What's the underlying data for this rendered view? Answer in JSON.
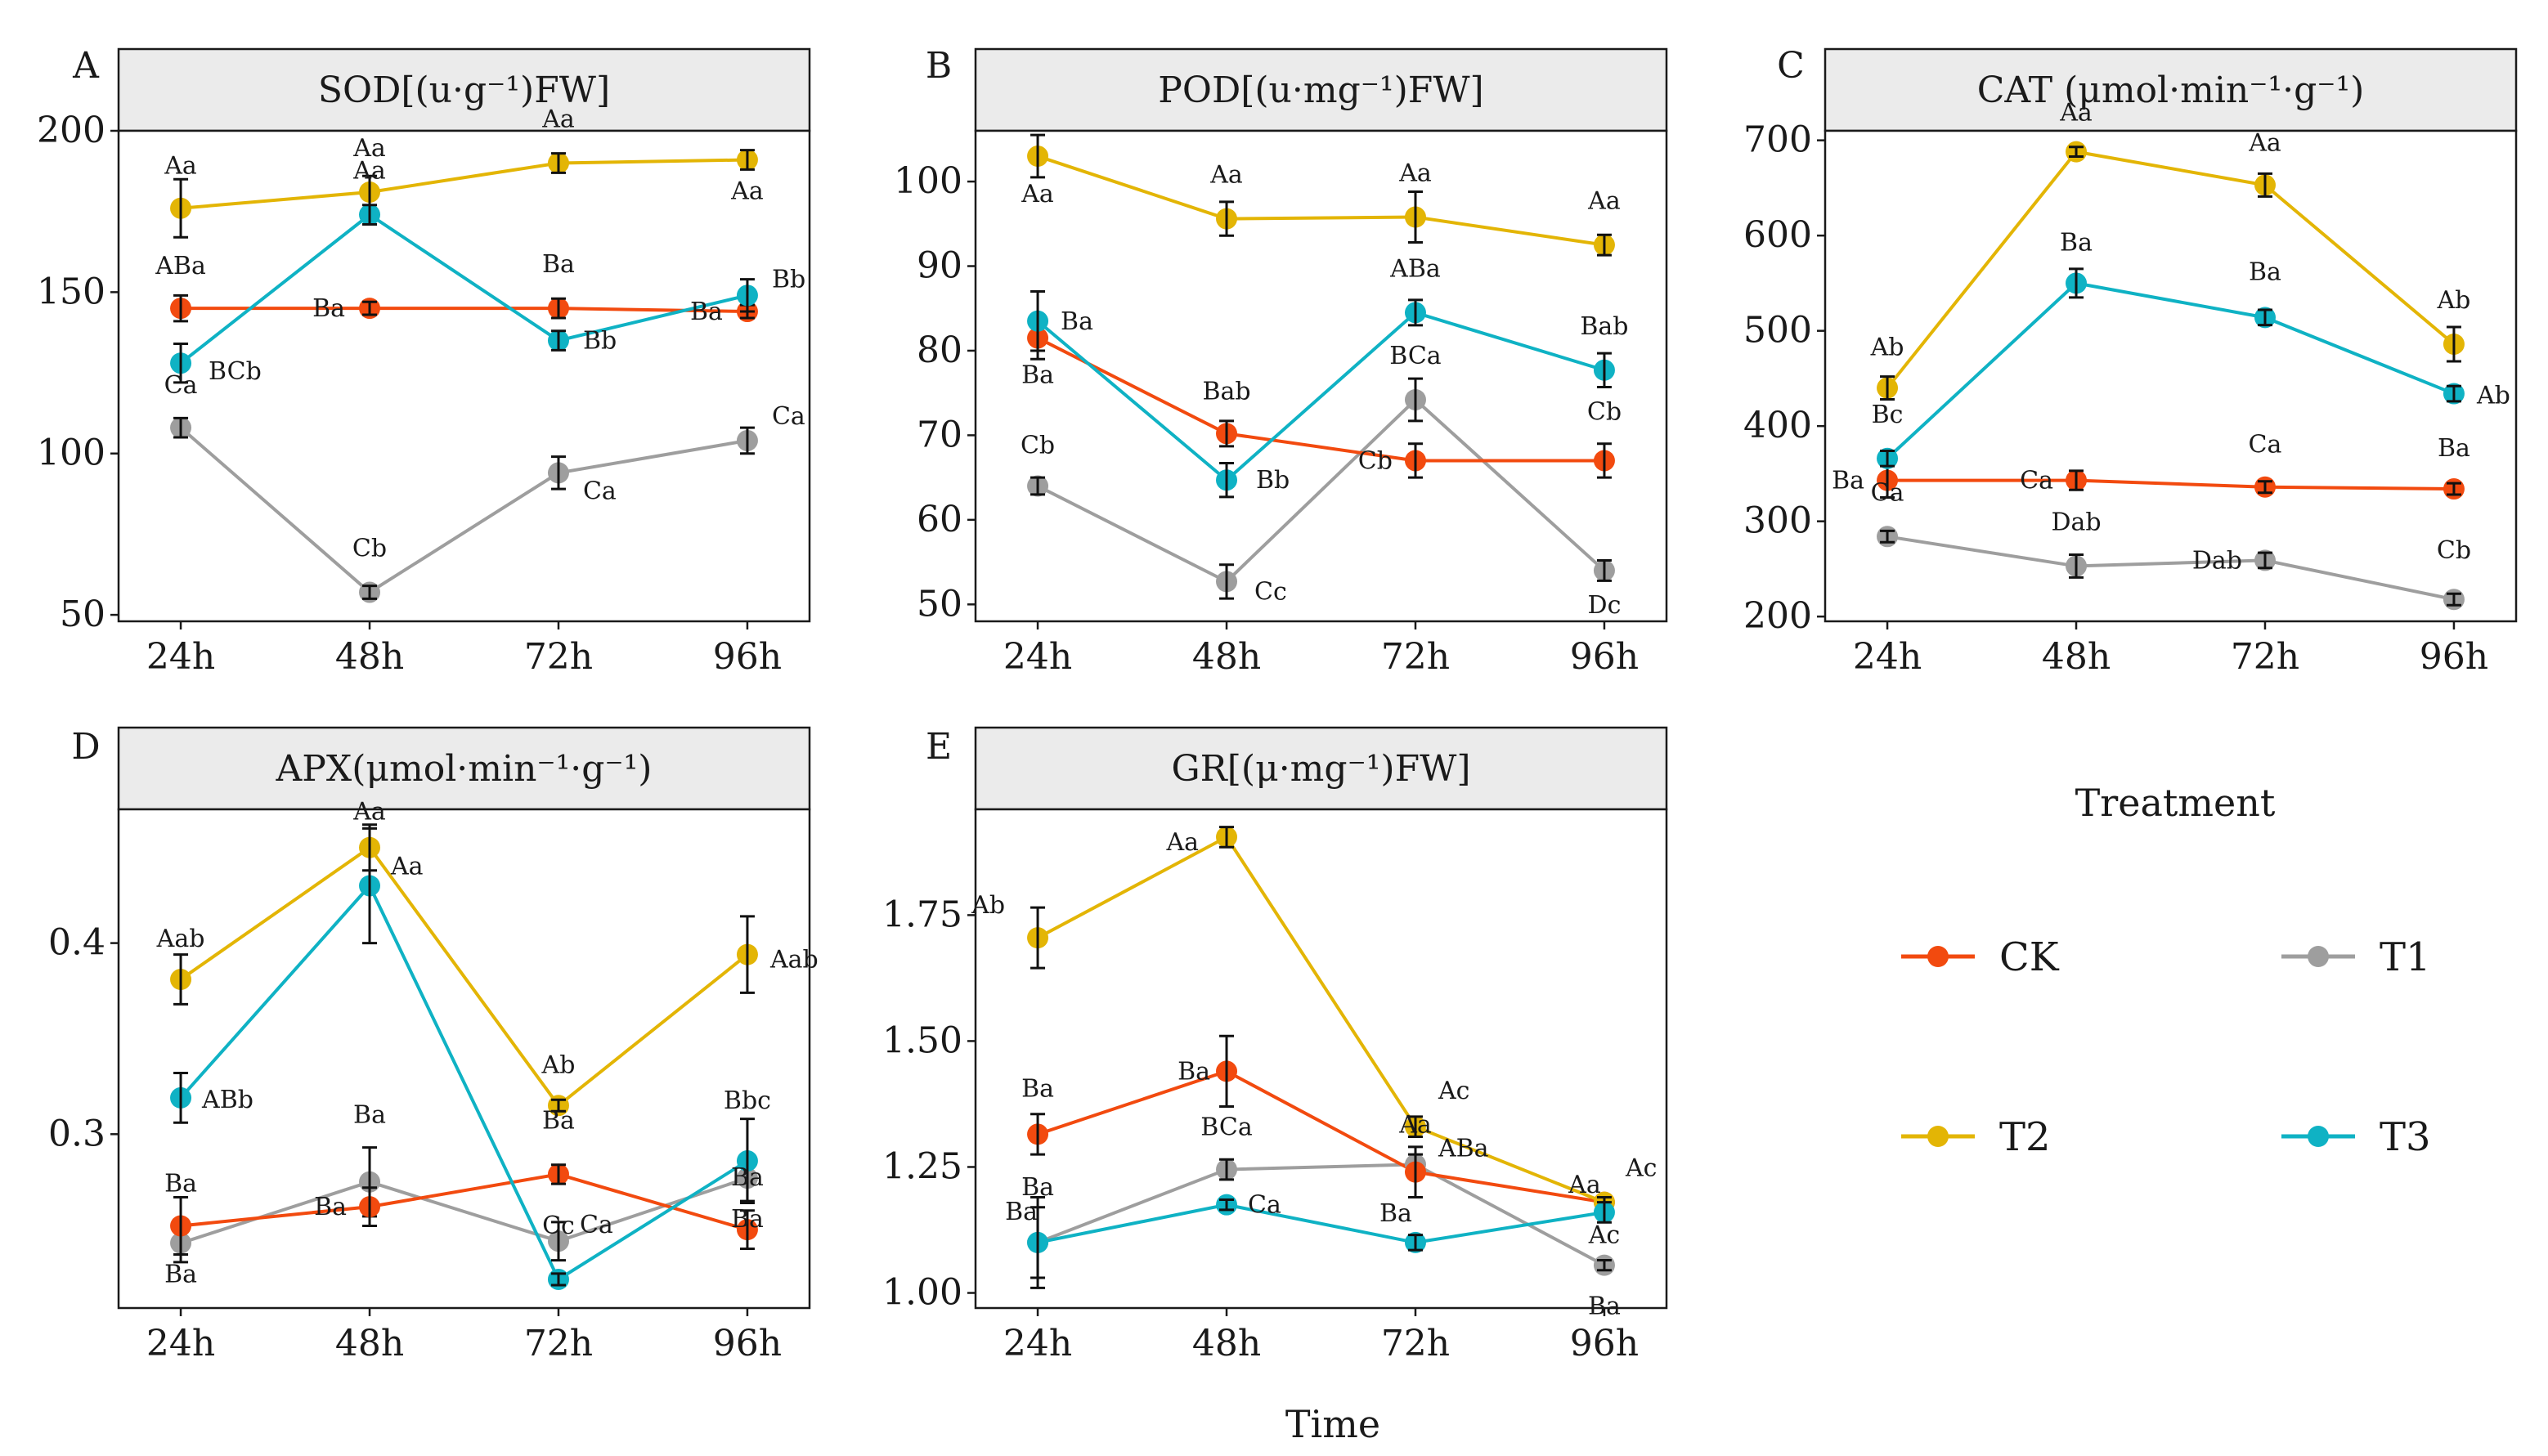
{
  "figure": {
    "x_axis_title": "Time",
    "legend_title": "Treatment",
    "legend_items": [
      {
        "name": "CK",
        "color": "#f24a0f"
      },
      {
        "name": "T1",
        "color": "#9e9e9e"
      },
      {
        "name": "T2",
        "color": "#e3b505"
      },
      {
        "name": "T3",
        "color": "#0fb2c4"
      }
    ]
  },
  "chart_data": [
    {
      "type": "line",
      "panel": "A",
      "title": "SOD[(u·g⁻¹)FW]",
      "xlabel": "Time",
      "ylabel": "",
      "categories": [
        "24h",
        "48h",
        "72h",
        "96h"
      ],
      "ylim": [
        48,
        200
      ],
      "yticks": [
        50,
        100,
        150,
        200
      ],
      "ytick_labels": [
        "50",
        "100",
        "150",
        "200"
      ],
      "series": [
        {
          "name": "CK",
          "color": "#f24a0f",
          "values": [
            145,
            145,
            145,
            144
          ],
          "errors": [
            4,
            2,
            3,
            2
          ],
          "labels": [
            "ABa",
            "Ba",
            "Ba",
            "Ba"
          ]
        },
        {
          "name": "T1",
          "color": "#9e9e9e",
          "values": [
            108,
            57,
            94,
            104
          ],
          "errors": [
            3,
            2,
            5,
            4
          ],
          "labels": [
            "Ca",
            "Cb",
            "Ca",
            "Ca"
          ]
        },
        {
          "name": "T2",
          "color": "#e3b505",
          "values": [
            176,
            181,
            190,
            191
          ],
          "errors": [
            9,
            5,
            3,
            3
          ],
          "labels": [
            "Aa",
            "Aa",
            "Aa",
            "Aa"
          ]
        },
        {
          "name": "T3",
          "color": "#0fb2c4",
          "values": [
            128,
            174,
            135,
            149
          ],
          "errors": [
            6,
            3,
            3,
            5
          ],
          "labels": [
            "BCb",
            "Aa",
            "Bb",
            "Bb"
          ]
        }
      ]
    },
    {
      "type": "line",
      "panel": "B",
      "title": "POD[(u·mg⁻¹)FW]",
      "xlabel": "Time",
      "ylabel": "",
      "categories": [
        "24h",
        "48h",
        "72h",
        "96h"
      ],
      "ylim": [
        48,
        106
      ],
      "yticks": [
        50,
        60,
        70,
        80,
        90,
        100
      ],
      "ytick_labels": [
        "50",
        "60",
        "70",
        "80",
        "90",
        "100"
      ],
      "series": [
        {
          "name": "CK",
          "color": "#f24a0f",
          "values": [
            81.5,
            70.2,
            67,
            67
          ],
          "errors": [
            2.5,
            1.5,
            2,
            2
          ],
          "labels": [
            "Ba",
            "Bab",
            "Cb",
            "Cb"
          ]
        },
        {
          "name": "T1",
          "color": "#9e9e9e",
          "values": [
            64,
            52.7,
            74.2,
            54
          ],
          "errors": [
            1,
            2,
            2.5,
            1.2
          ],
          "labels": [
            "Cb",
            "Cc",
            "BCa",
            "Dc"
          ]
        },
        {
          "name": "T2",
          "color": "#e3b505",
          "values": [
            103,
            95.6,
            95.8,
            92.5
          ],
          "errors": [
            2.5,
            2,
            3,
            1.2
          ],
          "labels": [
            "Aa",
            "Aa",
            "Aa",
            "Aa"
          ]
        },
        {
          "name": "T3",
          "color": "#0fb2c4",
          "values": [
            83.5,
            64.7,
            84.5,
            77.7
          ],
          "errors": [
            3.5,
            2,
            1.5,
            2
          ],
          "labels": [
            "Ba",
            "Bb",
            "ABa",
            "Bab"
          ]
        }
      ]
    },
    {
      "type": "line",
      "panel": "C",
      "title": "CAT (μmol·min⁻¹·g⁻¹)",
      "xlabel": "Time",
      "ylabel": "",
      "categories": [
        "24h",
        "48h",
        "72h",
        "96h"
      ],
      "ylim": [
        195,
        710
      ],
      "yticks": [
        200,
        300,
        400,
        500,
        600,
        700
      ],
      "ytick_labels": [
        "200",
        "300",
        "400",
        "500",
        "600",
        "700"
      ],
      "series": [
        {
          "name": "CK",
          "color": "#f24a0f",
          "values": [
            343,
            343,
            336,
            334
          ],
          "errors": [
            18,
            10,
            6,
            6
          ],
          "labels": [
            "Ba",
            "Ca",
            "Ca",
            "Ba"
          ]
        },
        {
          "name": "T1",
          "color": "#9e9e9e",
          "values": [
            284,
            253,
            259,
            218
          ],
          "errors": [
            6,
            12,
            8,
            6
          ],
          "labels": [
            "Ca",
            "Dab",
            "Dab",
            "Cb"
          ]
        },
        {
          "name": "T2",
          "color": "#e3b505",
          "values": [
            440,
            688,
            653,
            486
          ],
          "errors": [
            12,
            5,
            12,
            18
          ],
          "labels": [
            "Ab",
            "Aa",
            "Aa",
            "Ab"
          ]
        },
        {
          "name": "T3",
          "color": "#0fb2c4",
          "values": [
            366,
            550,
            514,
            434
          ],
          "errors": [
            8,
            15,
            8,
            8
          ],
          "labels": [
            "Bc",
            "Ba",
            "Ba",
            "Ab"
          ]
        }
      ]
    },
    {
      "type": "line",
      "panel": "D",
      "title": "APX(μmol·min⁻¹·g⁻¹)",
      "xlabel": "Time",
      "ylabel": "",
      "categories": [
        "24h",
        "48h",
        "72h",
        "96h"
      ],
      "ylim": [
        0.209,
        0.47
      ],
      "yticks": [
        0.3,
        0.4
      ],
      "ytick_labels": [
        "0.3",
        "0.4"
      ],
      "series": [
        {
          "name": "CK",
          "color": "#f24a0f",
          "values": [
            0.252,
            0.262,
            0.279,
            0.25
          ],
          "errors": [
            0.015,
            0.01,
            0.005,
            0.01
          ],
          "labels": [
            "Ba",
            "Ba",
            "Ba",
            "Ba"
          ]
        },
        {
          "name": "T1",
          "color": "#9e9e9e",
          "values": [
            0.243,
            0.275,
            0.244,
            0.277
          ],
          "errors": [
            0.01,
            0.018,
            0.01,
            0.012
          ],
          "labels": [
            "Ba",
            "Ba",
            "Ca",
            "Ba"
          ]
        },
        {
          "name": "T2",
          "color": "#e3b505",
          "values": [
            0.381,
            0.45,
            0.315,
            0.394
          ],
          "errors": [
            0.013,
            0.012,
            0.003,
            0.02
          ],
          "labels": [
            "Aab",
            "Aa",
            "Ab",
            "Aab"
          ]
        },
        {
          "name": "T3",
          "color": "#0fb2c4",
          "values": [
            0.319,
            0.43,
            0.224,
            0.286
          ],
          "errors": [
            0.013,
            0.03,
            0.003,
            0.022
          ],
          "labels": [
            "ABb",
            "Aa",
            "Cc",
            "Bbc"
          ]
        }
      ]
    },
    {
      "type": "line",
      "panel": "E",
      "title": "GR[(μ·mg⁻¹)FW]",
      "xlabel": "Time",
      "ylabel": "",
      "categories": [
        "24h",
        "48h",
        "72h",
        "96h"
      ],
      "ylim": [
        0.97,
        1.96
      ],
      "yticks": [
        1.0,
        1.25,
        1.5,
        1.75
      ],
      "ytick_labels": [
        "1.00",
        "1.25",
        "1.50",
        "1.75"
      ],
      "series": [
        {
          "name": "CK",
          "color": "#f24a0f",
          "values": [
            1.315,
            1.44,
            1.24,
            1.18
          ],
          "errors": [
            0.04,
            0.07,
            0.05,
            0.01
          ],
          "labels": [
            "Ba",
            "Ba",
            "Aa",
            "Ac"
          ]
        },
        {
          "name": "T1",
          "color": "#9e9e9e",
          "values": [
            1.1,
            1.245,
            1.255,
            1.055
          ],
          "errors": [
            0.09,
            0.02,
            0.02,
            0.01
          ],
          "labels": [
            "Ba",
            "BCa",
            "ABa",
            "Ba"
          ]
        },
        {
          "name": "T2",
          "color": "#e3b505",
          "values": [
            1.705,
            1.905,
            1.33,
            1.18
          ],
          "errors": [
            0.06,
            0.02,
            0.02,
            0.01
          ],
          "labels": [
            "Ab",
            "Aa",
            "Ac",
            "Ac"
          ]
        },
        {
          "name": "T3",
          "color": "#0fb2c4",
          "values": [
            1.1,
            1.175,
            1.1,
            1.16
          ],
          "errors": [
            0.07,
            0.01,
            0.015,
            0.02
          ],
          "labels": [
            "Ba",
            "Ca",
            "Ba",
            "Aa"
          ]
        }
      ]
    }
  ]
}
